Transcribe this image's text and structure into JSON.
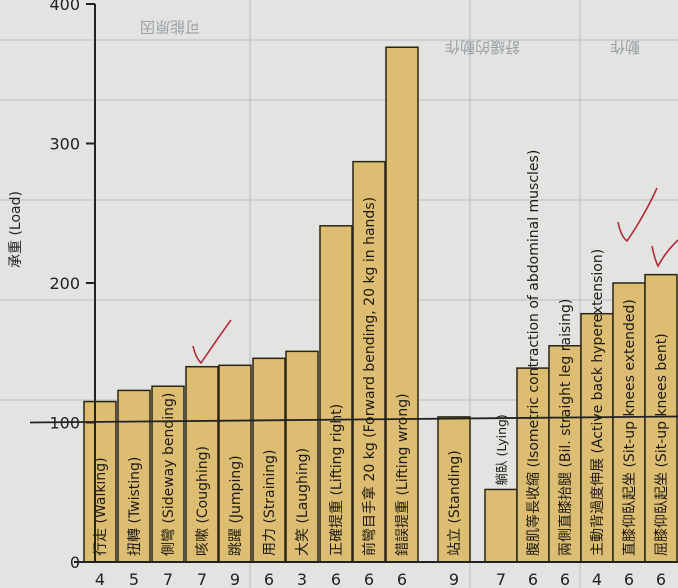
{
  "chart_data": {
    "type": "bar",
    "ylabel": "承重 (Load)",
    "ylim": [
      0,
      400
    ],
    "yticks": [
      0,
      100,
      200,
      300,
      400
    ],
    "reference_line": 100,
    "categories": [
      "行走 (Walking)",
      "扭轉 (Twisting)",
      "側彎 (Sideway bending)",
      "咳嗽 (Coughing)",
      "跳躍 (Jumping)",
      "用力 (Straining)",
      "大笑 (Laughing)",
      "正確提重 (Lifting right)",
      "前彎目手拿 20 kg (Forward bending, 20 kg in hands)",
      "錯誤提重 (Lifting wrong)",
      "站立 (Standing)",
      "躺臥 (Lying)",
      "腹肌等長收縮 (Isometric contraction of abdominal muscles)",
      "兩側直膝抬腿 (Bil. straight leg raising)",
      "主動背過度伸展 (Active back hyperextension)",
      "直膝仰臥起坐 (Sit-up knees extended)",
      "屈膝仰臥起坐 (Sit-up knees bent)"
    ],
    "values": [
      115,
      123,
      126,
      140,
      141,
      146,
      151,
      241,
      287,
      369,
      104,
      52,
      139,
      155,
      178,
      200,
      206
    ],
    "counts": [
      "4",
      "5",
      "7",
      "7",
      "9",
      "6",
      "3",
      "6",
      "6",
      "6",
      "9",
      "7",
      "6",
      "6",
      "4",
      "6",
      "6"
    ]
  },
  "background_text": [
    "可能原因",
    "舒緩的動作",
    "動作"
  ]
}
